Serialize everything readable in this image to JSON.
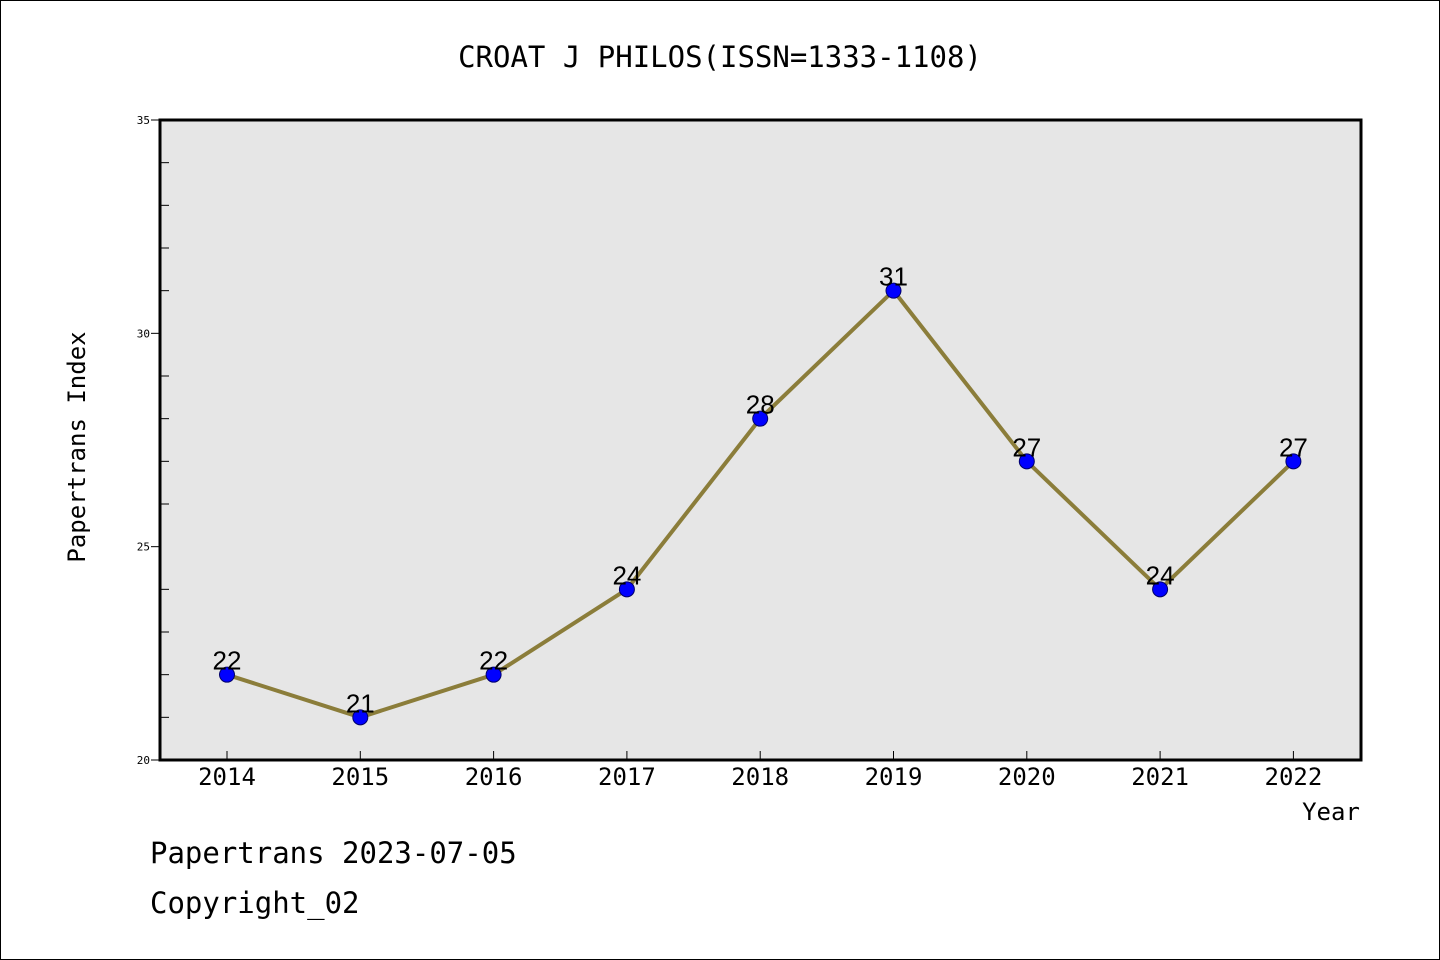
{
  "chart_data": {
    "type": "line",
    "title": "CROAT J PHILOS(ISSN=1333-1108)",
    "xlabel": "Year",
    "ylabel": "Papertrans Index",
    "categories": [
      "2014",
      "2015",
      "2016",
      "2017",
      "2018",
      "2019",
      "2020",
      "2021",
      "2022"
    ],
    "series": [
      {
        "values": [
          22,
          21,
          22,
          24,
          28,
          31,
          27,
          24,
          27
        ]
      }
    ],
    "data_labels": [
      "22",
      "21",
      "22",
      "24",
      "28",
      "31",
      "27",
      "24",
      "27"
    ],
    "ylim": [
      20,
      35
    ],
    "yticks": [
      "20",
      "25",
      "30",
      "35"
    ],
    "grid": false,
    "line_color": "#8b7d3a",
    "marker_color": "#0000ff",
    "plot_background": "#e6e6e6"
  },
  "footer": {
    "line1": "Papertrans 2023-07-05",
    "line2": "Copyright_02"
  }
}
